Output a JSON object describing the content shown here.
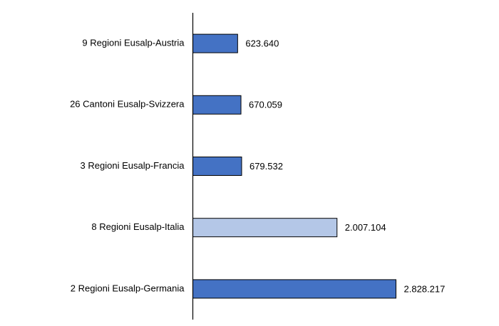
{
  "chart_data": {
    "type": "bar",
    "orientation": "horizontal",
    "categories": [
      "9 Regioni Eusalp-Austria",
      "26 Cantoni Eusalp-Svizzera",
      "3 Regioni Eusalp-Francia",
      "8 Regioni Eusalp-Italia",
      "2 Regioni Eusalp-Germania"
    ],
    "values": [
      623640,
      670059,
      679532,
      2007104,
      2828217
    ],
    "value_labels": [
      "623.640",
      "670.059",
      "679.532",
      "2.007.104",
      "2.828.217"
    ],
    "highlight_index": 3,
    "colors": {
      "bar": "#4472c4",
      "highlight": "#b4c7e7",
      "outline": "#000000",
      "axis": "#000000"
    },
    "title": "",
    "xlabel": "",
    "ylabel": "",
    "grid": false,
    "legend": "none"
  }
}
